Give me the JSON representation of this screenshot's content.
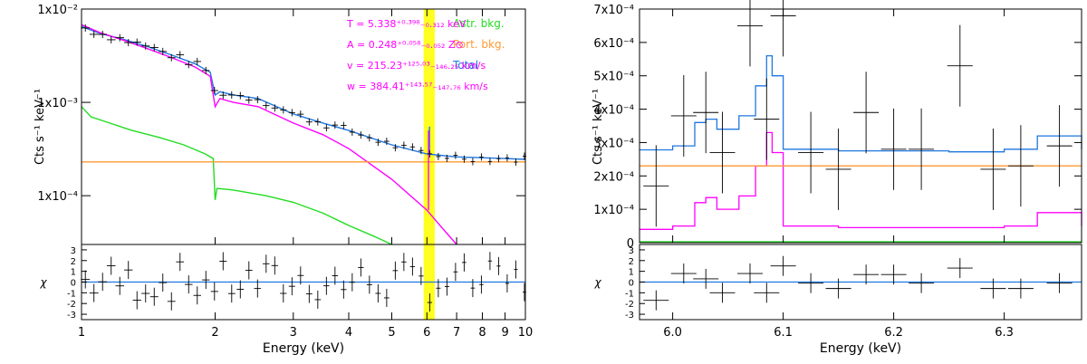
{
  "chart_data": [
    {
      "type": "line",
      "panel": "left",
      "xlabel": "Energy (keV)",
      "ylabel_main": "Cts s⁻¹ keV⁻¹",
      "ylabel_resid": "χ",
      "xscale": "log",
      "yscale": "log",
      "xlim": [
        1,
        10
      ],
      "ylim": [
        3e-05,
        0.01
      ],
      "resid_ylim": [
        -3.5,
        3.5
      ],
      "x_ticks": [
        "1",
        "2",
        "3",
        "4",
        "5",
        "6",
        "7",
        "8",
        "9",
        "10"
      ],
      "y_ticks": [
        "1x10⁻²",
        "1x10⁻³",
        "1x10⁻⁴"
      ],
      "resid_ticks": [
        "3",
        "2",
        "1",
        "0",
        "-1",
        "-2",
        "-3"
      ],
      "highlight_band_kev": [
        5.9,
        6.25
      ],
      "annotations": [
        "T = 5.338⁺⁰ᐧ³⁹⁸₋₀.₃₁₂ keV",
        "A = 0.248⁺⁰ᐧ⁰⁵⁸₋₀.₀₅₂ Z⊙",
        "v = 215.23⁺¹²⁵ᐧ⁰³₋₁₄₆.₂₅ km/s",
        "w = 384.41⁺¹⁴³ᐧ⁵⁷₋₁₄₇.₇₆ km/s"
      ],
      "legend": [
        "Astr. bkg.",
        "Port. bkg.",
        "Total"
      ],
      "legend_position": "top-right",
      "colors": {
        "total": "#1f77e0",
        "source": "#ff00ff",
        "astro": "#22dd22",
        "port": "#ff9933",
        "data": "#000000",
        "band": "#ffff22"
      },
      "series": [
        {
          "name": "Total",
          "x": [
            1,
            1.1,
            1.25,
            1.4,
            1.6,
            1.8,
            1.95,
            2.0,
            2.05,
            2.2,
            2.5,
            3.0,
            3.5,
            4,
            5,
            6,
            7,
            8,
            9,
            10
          ],
          "values": [
            0.0065,
            0.0055,
            0.0047,
            0.004,
            0.0032,
            0.0026,
            0.0021,
            0.0012,
            0.0013,
            0.0012,
            0.0011,
            0.00075,
            0.0006,
            0.0005,
            0.00035,
            0.00028,
            0.00026,
            0.000255,
            0.00025,
            0.000245
          ]
        },
        {
          "name": "Source",
          "x": [
            1,
            1.1,
            1.25,
            1.4,
            1.6,
            1.8,
            1.95,
            2.0,
            2.05,
            2.2,
            2.5,
            3.0,
            3.5,
            4,
            5,
            6,
            6.5,
            7
          ],
          "values": [
            0.0068,
            0.0056,
            0.0046,
            0.0038,
            0.003,
            0.0024,
            0.0019,
            0.0009,
            0.0011,
            0.001,
            0.0009,
            0.0006,
            0.00045,
            0.00032,
            0.00015,
            7e-05,
            4.5e-05,
            3e-05
          ]
        },
        {
          "name": "Astr. bkg.",
          "x": [
            1,
            1.05,
            1.3,
            1.5,
            1.7,
            1.9,
            1.98,
            2.0,
            2.02,
            2.2,
            2.6,
            3.0,
            3.5,
            4.0,
            4.6,
            5.0
          ],
          "values": [
            0.0009,
            0.0007,
            0.0005,
            0.00042,
            0.00035,
            0.00028,
            0.00025,
            9e-05,
            0.00012,
            0.000115,
            0.0001,
            8.5e-05,
            6.5e-05,
            4.8e-05,
            3.6e-05,
            3e-05
          ]
        },
        {
          "name": "Port. bkg.",
          "x": [
            1,
            10
          ],
          "values": [
            0.00023,
            0.00023
          ]
        }
      ]
    },
    {
      "type": "line",
      "panel": "right",
      "xlabel": "Energy (keV)",
      "ylabel_main": "Cts s⁻¹ keV⁻¹",
      "ylabel_resid": "χ",
      "xlim": [
        5.97,
        6.37
      ],
      "ylim": [
        0,
        0.0007
      ],
      "resid_ylim": [
        -3.5,
        3.5
      ],
      "x_ticks": [
        "6.0",
        "6.1",
        "6.2",
        "6.3"
      ],
      "y_ticks": [
        "7x10⁻⁴",
        "6x10⁻⁴",
        "5x10⁻⁴",
        "4x10⁻⁴",
        "3x10⁻⁴",
        "2x10⁻⁴",
        "1x10⁻⁴",
        "0"
      ],
      "resid_ticks": [
        "3",
        "2",
        "1",
        "0",
        "-1",
        "-2",
        "-3"
      ],
      "series": [
        {
          "name": "Total",
          "x": [
            5.97,
            6.0,
            6.02,
            6.03,
            6.04,
            6.06,
            6.075,
            6.085,
            6.09,
            6.1,
            6.15,
            6.25,
            6.3,
            6.33,
            6.37
          ],
          "values": [
            0.000278,
            0.00029,
            0.00036,
            0.00037,
            0.00034,
            0.00038,
            0.00047,
            0.00056,
            0.0005,
            0.00028,
            0.000275,
            0.000272,
            0.00028,
            0.00032,
            0.00028
          ]
        },
        {
          "name": "Source",
          "x": [
            5.97,
            6.0,
            6.02,
            6.03,
            6.04,
            6.06,
            6.075,
            6.085,
            6.09,
            6.1,
            6.15,
            6.25,
            6.3,
            6.33,
            6.37
          ],
          "values": [
            4e-05,
            5e-05,
            0.00012,
            0.000135,
            0.0001,
            0.00014,
            0.00023,
            0.00033,
            0.00027,
            5e-05,
            4.5e-05,
            4.5e-05,
            5e-05,
            9e-05,
            5e-05
          ]
        },
        {
          "name": "Port. bkg.",
          "x": [
            5.97,
            6.37
          ],
          "values": [
            0.00023,
            0.00023
          ]
        }
      ]
    }
  ]
}
